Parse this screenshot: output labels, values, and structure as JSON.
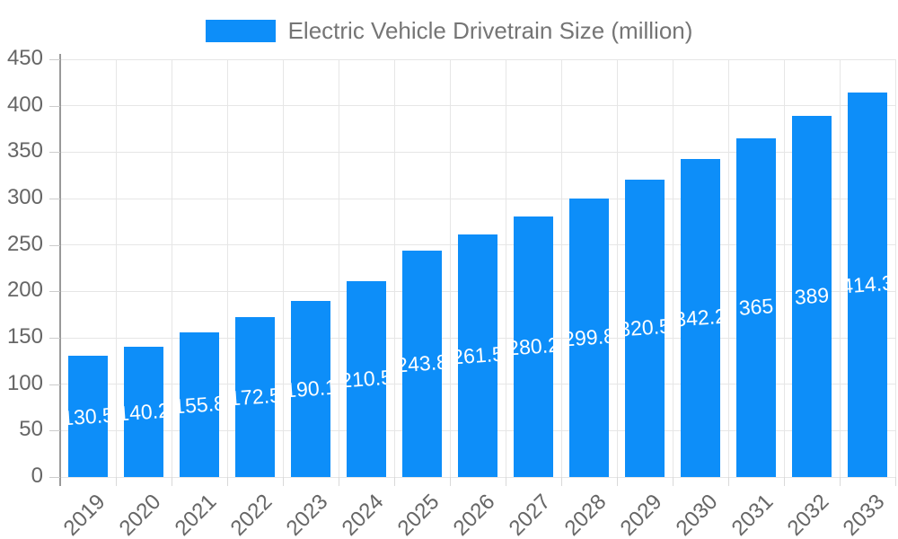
{
  "chart_data": {
    "type": "bar",
    "title": "Electric Vehicle Drivetrain Size (million)",
    "categories": [
      "2019",
      "2020",
      "2021",
      "2022",
      "2023",
      "2024",
      "2025",
      "2026",
      "2027",
      "2028",
      "2029",
      "2030",
      "2031",
      "2032",
      "2033"
    ],
    "values": [
      130.5,
      140.2,
      155.8,
      172.5,
      190.1,
      210.5,
      243.8,
      261.5,
      280.2,
      299.8,
      320.5,
      342.2,
      365,
      389,
      414.3
    ],
    "xlabel": "",
    "ylabel": "",
    "ylim": [
      0,
      450
    ],
    "ytick_step": 50,
    "yticks": [
      0,
      50,
      100,
      150,
      200,
      250,
      300,
      350,
      400,
      450
    ],
    "grid": true,
    "legend_position": "top",
    "bar_value_labels_visible": true,
    "colors": {
      "bar": "#0d8ef9",
      "bar_value_label": "#ffffff",
      "title": "#757575",
      "axis_text": "#666666",
      "grid_line": "#e6e6e6",
      "axis_line": "#999999",
      "tick": "#cccccc"
    }
  }
}
